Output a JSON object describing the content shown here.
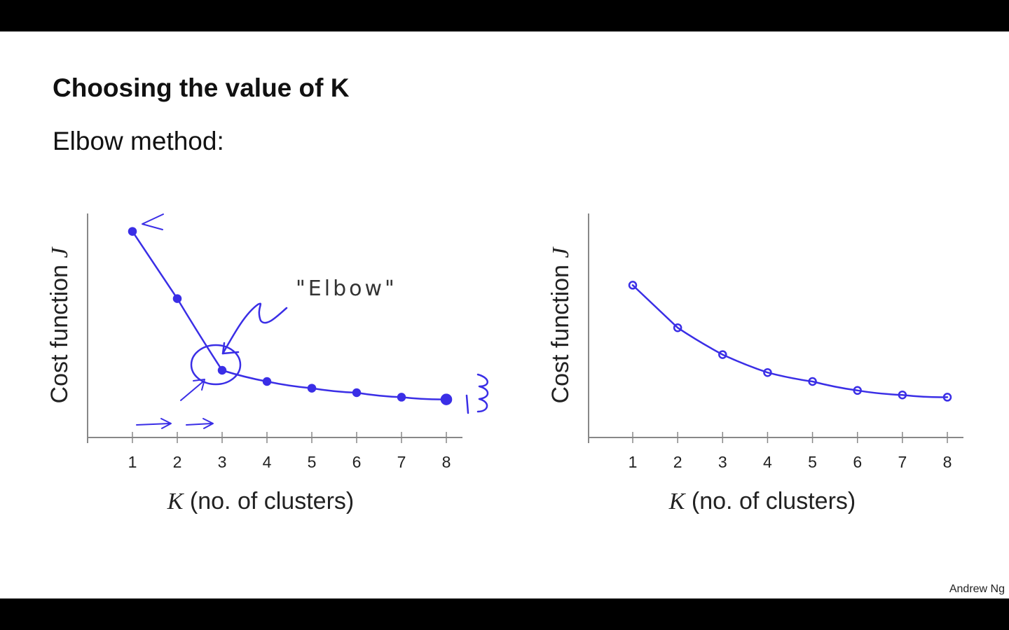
{
  "slide": {
    "title": "Choosing the value of K",
    "subtitle": "Elbow method:",
    "author": "Andrew Ng"
  },
  "colors": {
    "ink": "#3a2ee6",
    "axis": "#888888",
    "text": "#222222"
  },
  "annotations": {
    "elbow": "\"Elbow\""
  },
  "chart_data": [
    {
      "type": "line",
      "xlabel_var": "K",
      "xlabel_rest": " (no. of clusters)",
      "ylabel_text": "Cost function ",
      "ylabel_var": "J",
      "x": [
        1,
        2,
        3,
        4,
        5,
        6,
        7,
        8
      ],
      "xticks": [
        "1",
        "2",
        "3",
        "4",
        "5",
        "6",
        "7",
        "8"
      ],
      "values": [
        0.92,
        0.62,
        0.3,
        0.25,
        0.22,
        0.2,
        0.18,
        0.17
      ],
      "xlim": [
        0,
        8.3
      ],
      "ylim": [
        0,
        1
      ],
      "grid": false
    },
    {
      "type": "line",
      "xlabel_var": "K",
      "xlabel_rest": " (no. of clusters)",
      "ylabel_text": "Cost function ",
      "ylabel_var": "J",
      "x": [
        1,
        2,
        3,
        4,
        5,
        6,
        7,
        8
      ],
      "xticks": [
        "1",
        "2",
        "3",
        "4",
        "5",
        "6",
        "7",
        "8"
      ],
      "values": [
        0.68,
        0.49,
        0.37,
        0.29,
        0.25,
        0.21,
        0.19,
        0.18
      ],
      "xlim": [
        0,
        8.3
      ],
      "ylim": [
        0,
        1
      ],
      "grid": false
    }
  ]
}
